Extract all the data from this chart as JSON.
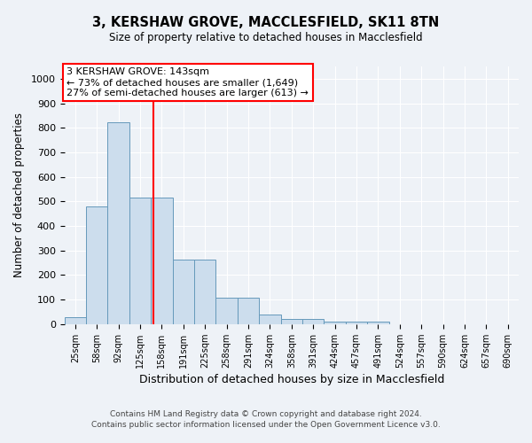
{
  "title": "3, KERSHAW GROVE, MACCLESFIELD, SK11 8TN",
  "subtitle": "Size of property relative to detached houses in Macclesfield",
  "xlabel": "Distribution of detached houses by size in Macclesfield",
  "ylabel": "Number of detached properties",
  "bar_color": "#ccdded",
  "bar_edge_color": "#6699bb",
  "categories": [
    "25sqm",
    "58sqm",
    "92sqm",
    "125sqm",
    "158sqm",
    "191sqm",
    "225sqm",
    "258sqm",
    "291sqm",
    "324sqm",
    "358sqm",
    "391sqm",
    "424sqm",
    "457sqm",
    "491sqm",
    "524sqm",
    "557sqm",
    "590sqm",
    "624sqm",
    "657sqm",
    "690sqm"
  ],
  "values": [
    30,
    478,
    822,
    516,
    516,
    262,
    262,
    108,
    108,
    40,
    20,
    20,
    10,
    10,
    10,
    0,
    0,
    0,
    0,
    0,
    0
  ],
  "ylim": [
    0,
    1050
  ],
  "yticks": [
    0,
    100,
    200,
    300,
    400,
    500,
    600,
    700,
    800,
    900,
    1000
  ],
  "red_line_x": 3.62,
  "annotation_text": "3 KERSHAW GROVE: 143sqm\n← 73% of detached houses are smaller (1,649)\n27% of semi-detached houses are larger (613) →",
  "footer_line1": "Contains HM Land Registry data © Crown copyright and database right 2024.",
  "footer_line2": "Contains public sector information licensed under the Open Government Licence v3.0.",
  "background_color": "#eef2f7",
  "grid_color": "#ffffff"
}
